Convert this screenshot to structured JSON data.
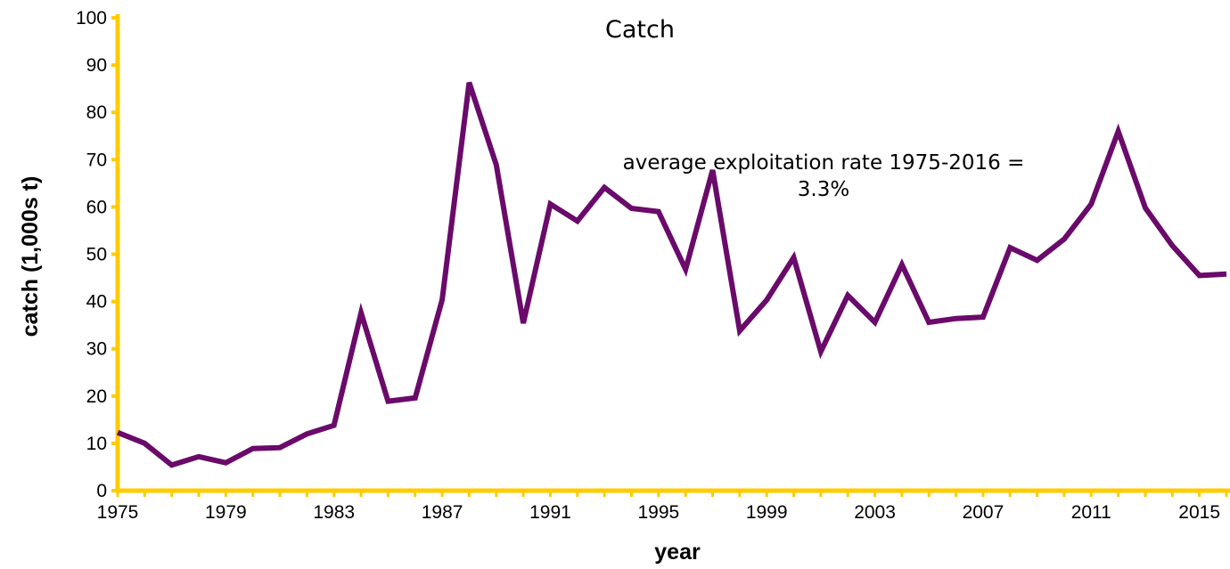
{
  "chart_data": {
    "type": "line",
    "title": "Catch",
    "xlabel": "year",
    "ylabel": "catch (1,000s t)",
    "annotation": [
      "average exploitation rate 1975-2016 =",
      "3.3%"
    ],
    "xlim": [
      1975,
      2016
    ],
    "ylim": [
      0,
      100
    ],
    "x_ticks": [
      1975,
      1979,
      1983,
      1987,
      1991,
      1995,
      1999,
      2003,
      2007,
      2011,
      2015
    ],
    "y_ticks": [
      0,
      10,
      20,
      30,
      40,
      50,
      60,
      70,
      80,
      90,
      100
    ],
    "grid": false,
    "colors": {
      "line": "#6a0a6a",
      "axis": "#ffcc00"
    },
    "series": [
      {
        "x": [
          1975,
          1976,
          1977,
          1978,
          1979,
          1980,
          1981,
          1982,
          1983,
          1984,
          1985,
          1986,
          1987,
          1988,
          1989,
          1990,
          1991,
          1992,
          1993,
          1994,
          1995,
          1996,
          1997,
          1998,
          1999,
          2000,
          2001,
          2002,
          2003,
          2004,
          2005,
          2006,
          2007,
          2008,
          2009,
          2010,
          2011,
          2012,
          2013,
          2014,
          2015,
          2016
        ],
        "values": [
          12.3,
          10.0,
          5.4,
          7.2,
          5.9,
          8.9,
          9.1,
          12.0,
          13.8,
          37.6,
          18.9,
          19.6,
          40.4,
          86.3,
          68.9,
          35.4,
          60.6,
          57.0,
          64.1,
          59.7,
          59.0,
          46.8,
          67.8,
          33.8,
          40.3,
          49.3,
          29.4,
          41.3,
          35.6,
          47.8,
          35.6,
          36.4,
          36.7,
          51.4,
          48.7,
          53.2,
          60.6,
          76.0,
          59.8,
          51.8,
          45.5,
          45.8
        ]
      }
    ]
  }
}
